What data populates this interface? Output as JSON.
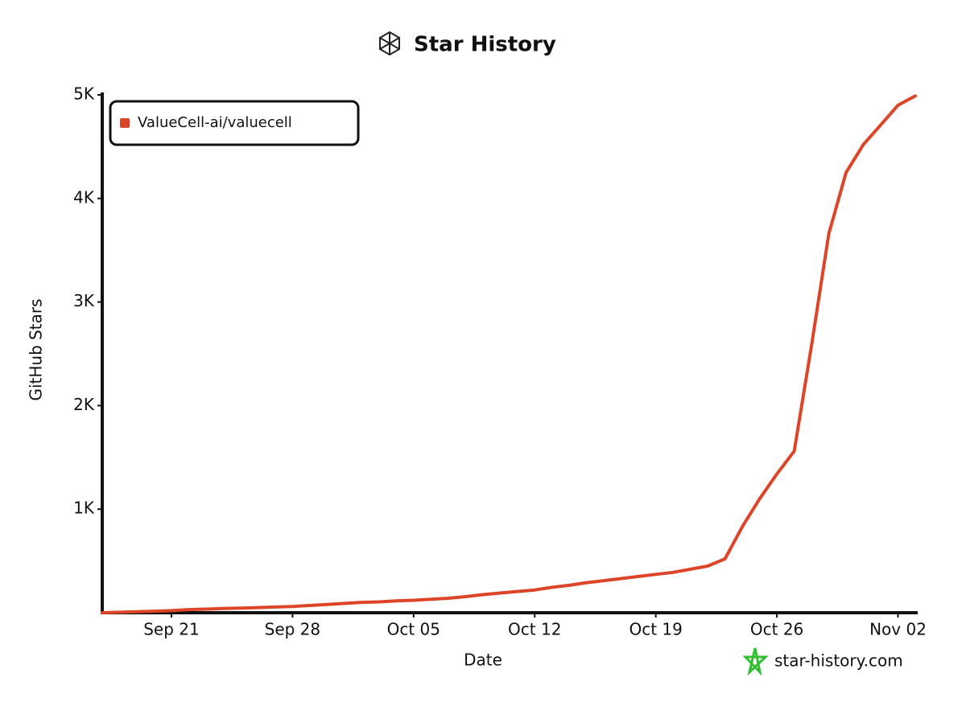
{
  "chart_data": {
    "type": "line",
    "title": "Star History",
    "x_label": "Date",
    "y_label": "GitHub Stars",
    "watermark": "star-history.com",
    "x": [
      "Sep 17",
      "Sep 18",
      "Sep 19",
      "Sep 20",
      "Sep 21",
      "Sep 22",
      "Sep 23",
      "Sep 24",
      "Sep 25",
      "Sep 26",
      "Sep 27",
      "Sep 28",
      "Sep 29",
      "Sep 30",
      "Oct 01",
      "Oct 02",
      "Oct 03",
      "Oct 04",
      "Oct 05",
      "Oct 06",
      "Oct 07",
      "Oct 08",
      "Oct 09",
      "Oct 10",
      "Oct 11",
      "Oct 12",
      "Oct 13",
      "Oct 14",
      "Oct 15",
      "Oct 16",
      "Oct 17",
      "Oct 18",
      "Oct 19",
      "Oct 20",
      "Oct 21",
      "Oct 22",
      "Oct 23",
      "Oct 24",
      "Oct 25",
      "Oct 26",
      "Oct 27",
      "Oct 28",
      "Oct 29",
      "Oct 30",
      "Oct 31",
      "Nov 01",
      "Nov 02",
      "Nov 03"
    ],
    "series": [
      {
        "name": "ValueCell-ai/valuecell",
        "color": "#dd4528",
        "values": [
          0,
          5,
          10,
          15,
          20,
          30,
          35,
          40,
          45,
          50,
          55,
          60,
          70,
          80,
          90,
          100,
          105,
          115,
          120,
          130,
          140,
          155,
          175,
          190,
          205,
          220,
          245,
          265,
          290,
          310,
          330,
          350,
          370,
          390,
          420,
          450,
          520,
          830,
          1100,
          1340,
          1560,
          2580,
          3660,
          4250,
          4520,
          4710,
          4900,
          4990
        ]
      }
    ],
    "xlim": [
      "Sep 17",
      "Nov 03"
    ],
    "xticks": [
      "Sep 21",
      "Sep 28",
      "Oct 05",
      "Oct 12",
      "Oct 19",
      "Oct 26",
      "Nov 02"
    ],
    "ylim": [
      0,
      5000
    ],
    "yticks": [
      {
        "value": 1000,
        "label": "1K"
      },
      {
        "value": 2000,
        "label": "2K"
      },
      {
        "value": 3000,
        "label": "3K"
      },
      {
        "value": 4000,
        "label": "4K"
      },
      {
        "value": 5000,
        "label": "5K"
      }
    ],
    "legend": "upper-left"
  }
}
